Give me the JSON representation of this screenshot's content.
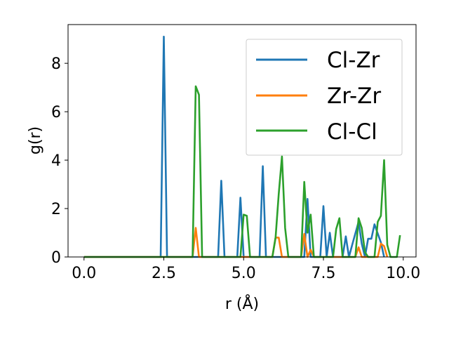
{
  "chart_data": {
    "type": "line",
    "xlabel": "r (Å)",
    "ylabel": "g(r)",
    "xlim": [
      -0.5,
      10.4
    ],
    "ylim": [
      0,
      9.6
    ],
    "xticks": [
      0.0,
      2.5,
      5.0,
      7.5,
      10.0
    ],
    "xtick_labels": [
      "0.0",
      "2.5",
      "5.0",
      "7.5",
      "10.0"
    ],
    "yticks": [
      0,
      2,
      4,
      6,
      8
    ],
    "ytick_labels": [
      "0",
      "2",
      "4",
      "6",
      "8"
    ],
    "legend_position": "top-right",
    "grid": false,
    "series": [
      {
        "name": "Cl-Zr",
        "color": "#1f77b4",
        "points": [
          [
            0,
            0
          ],
          [
            2.4,
            0
          ],
          [
            2.5,
            9.1
          ],
          [
            2.6,
            0
          ],
          [
            4.2,
            0
          ],
          [
            4.3,
            3.15
          ],
          [
            4.4,
            0
          ],
          [
            4.8,
            0
          ],
          [
            4.9,
            2.45
          ],
          [
            5.0,
            0
          ],
          [
            5.5,
            0
          ],
          [
            5.6,
            3.75
          ],
          [
            5.7,
            0
          ],
          [
            6.9,
            0
          ],
          [
            7.0,
            2.4
          ],
          [
            7.1,
            0
          ],
          [
            7.4,
            0
          ],
          [
            7.5,
            2.1
          ],
          [
            7.6,
            0
          ],
          [
            7.7,
            1.0
          ],
          [
            7.8,
            0
          ],
          [
            8.1,
            0
          ],
          [
            8.2,
            0.85
          ],
          [
            8.3,
            0
          ],
          [
            8.4,
            0.5
          ],
          [
            8.6,
            1.45
          ],
          [
            8.7,
            0.55
          ],
          [
            8.8,
            0
          ],
          [
            8.9,
            0.75
          ],
          [
            9.0,
            0.75
          ],
          [
            9.1,
            1.35
          ],
          [
            9.3,
            0.6
          ],
          [
            9.4,
            0
          ]
        ]
      },
      {
        "name": "Zr-Zr",
        "color": "#ff7f0e",
        "points": [
          [
            0,
            0
          ],
          [
            3.4,
            0
          ],
          [
            3.5,
            1.2
          ],
          [
            3.6,
            0
          ],
          [
            5.9,
            0
          ],
          [
            6.0,
            0.8
          ],
          [
            6.1,
            0.8
          ],
          [
            6.2,
            0
          ],
          [
            6.8,
            0
          ],
          [
            6.9,
            0.95
          ],
          [
            7.0,
            0
          ],
          [
            7.1,
            0.3
          ],
          [
            7.2,
            0
          ],
          [
            8.5,
            0
          ],
          [
            8.6,
            0.4
          ],
          [
            8.7,
            0
          ],
          [
            9.2,
            0
          ],
          [
            9.3,
            0.55
          ],
          [
            9.4,
            0.45
          ],
          [
            9.5,
            0
          ]
        ]
      },
      {
        "name": "Cl-Cl",
        "color": "#2ca02c",
        "points": [
          [
            0,
            0
          ],
          [
            3.4,
            0
          ],
          [
            3.5,
            7.05
          ],
          [
            3.6,
            6.7
          ],
          [
            3.7,
            0
          ],
          [
            4.9,
            0
          ],
          [
            5.0,
            1.75
          ],
          [
            5.1,
            1.7
          ],
          [
            5.2,
            0
          ],
          [
            5.9,
            0
          ],
          [
            6.0,
            0.8
          ],
          [
            6.1,
            2.6
          ],
          [
            6.2,
            4.15
          ],
          [
            6.3,
            1.2
          ],
          [
            6.4,
            0
          ],
          [
            6.8,
            0
          ],
          [
            6.9,
            3.1
          ],
          [
            7.0,
            1.0
          ],
          [
            7.1,
            1.75
          ],
          [
            7.2,
            0
          ],
          [
            7.8,
            0
          ],
          [
            7.9,
            1.15
          ],
          [
            8.0,
            1.6
          ],
          [
            8.1,
            0
          ],
          [
            8.5,
            0
          ],
          [
            8.6,
            1.6
          ],
          [
            8.7,
            1.2
          ],
          [
            8.8,
            0.2
          ],
          [
            8.9,
            0
          ],
          [
            9.0,
            0
          ],
          [
            9.1,
            0
          ],
          [
            9.2,
            1.45
          ],
          [
            9.3,
            1.7
          ],
          [
            9.4,
            4.0
          ],
          [
            9.5,
            0.5
          ],
          [
            9.6,
            0
          ],
          [
            9.8,
            0
          ],
          [
            9.9,
            0.9
          ]
        ]
      }
    ]
  }
}
